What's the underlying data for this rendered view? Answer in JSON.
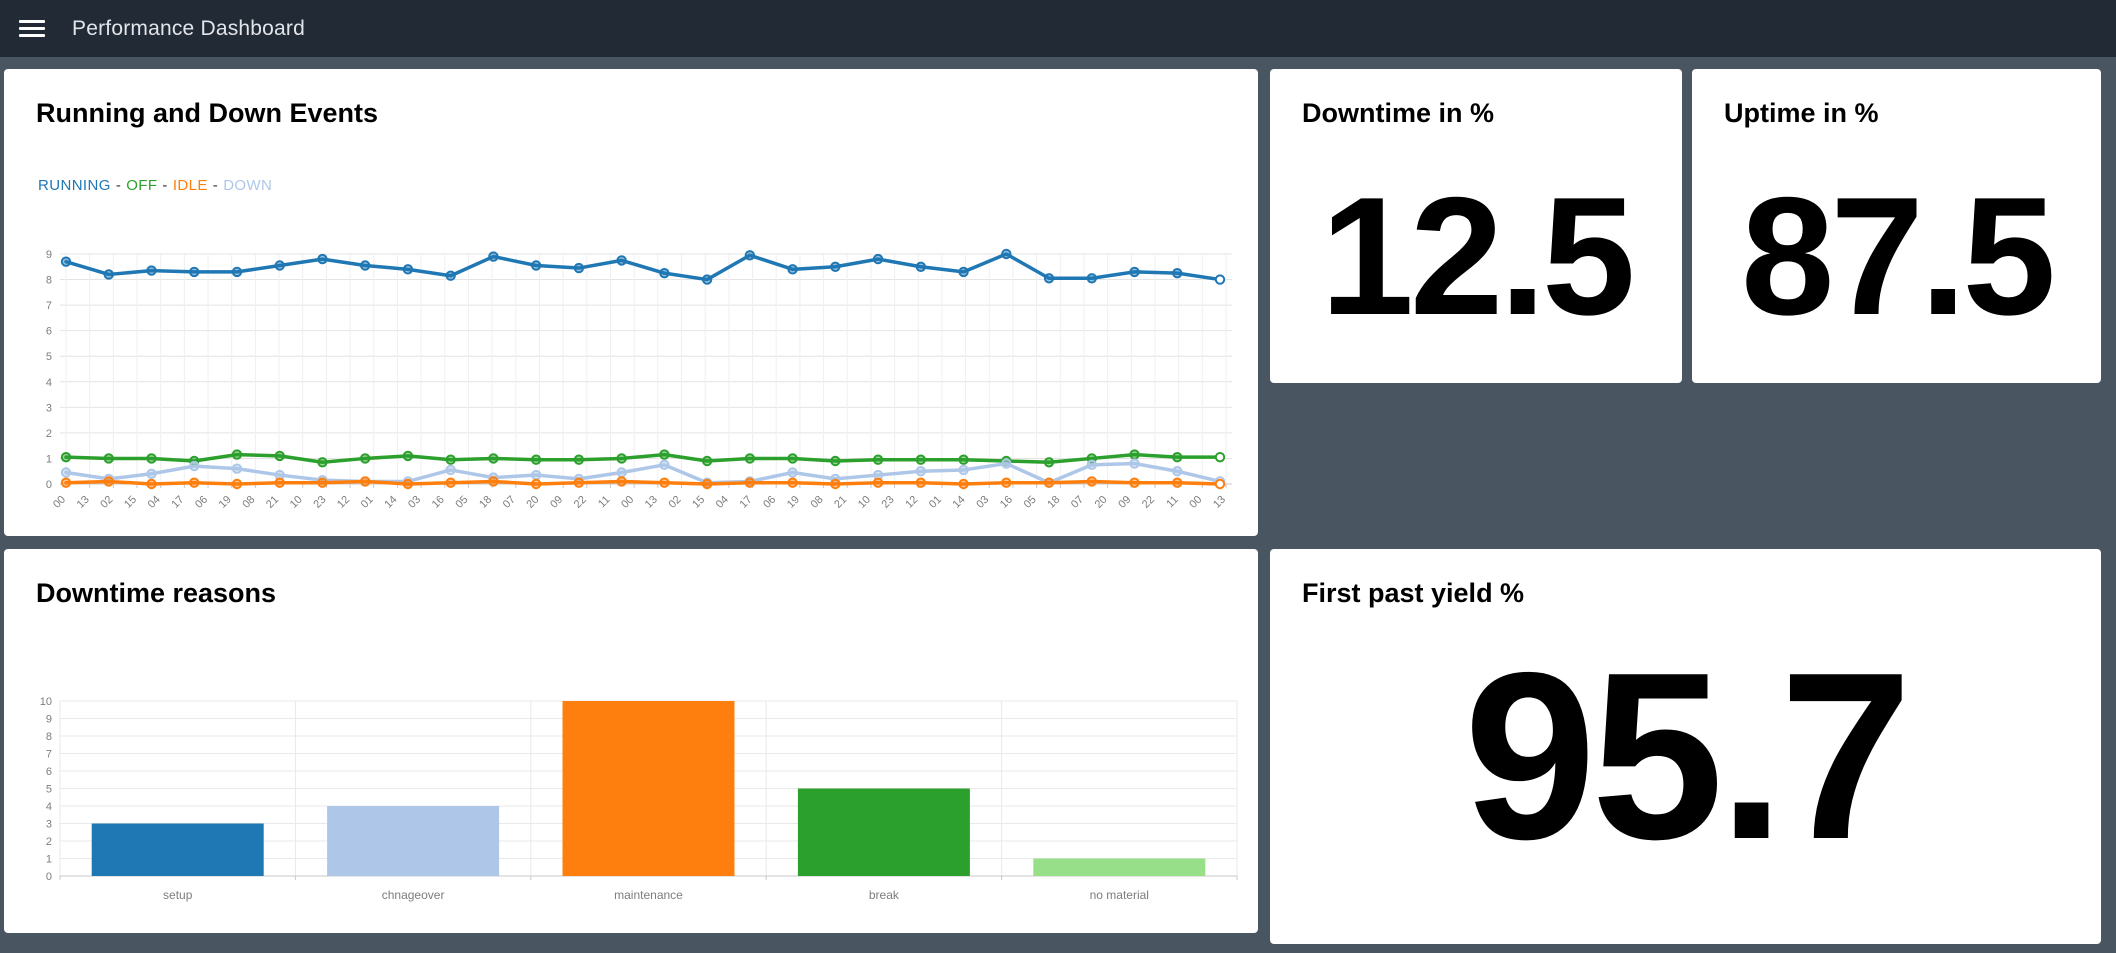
{
  "navbar": {
    "title": "Performance Dashboard"
  },
  "colors": {
    "navbar_bg": "#222a36",
    "page_bg": "#4a5562",
    "card_bg": "#ffffff",
    "running": "#1f77b4",
    "off": "#2ca02c",
    "idle": "#ff7f0e",
    "down": "#aec7e8",
    "no_material": "#98df8a",
    "grid_line": "#e4e4e4",
    "axis_text": "#7d7d7d"
  },
  "cards": {
    "events": {
      "title": "Running and Down Events",
      "legend": [
        {
          "label": "RUNNING",
          "color": "#1f77b4"
        },
        {
          "label": "OFF",
          "color": "#2ca02c"
        },
        {
          "label": "IDLE",
          "color": "#ff7f0e"
        },
        {
          "label": "DOWN",
          "color": "#aec7e8"
        }
      ],
      "legend_separator": "-"
    },
    "downtime": {
      "title": "Downtime in %",
      "value": "12.5"
    },
    "uptime": {
      "title": "Uptime in %",
      "value": "87.5"
    },
    "reasons": {
      "title": "Downtime reasons"
    },
    "yield": {
      "title": "First past yield %",
      "value": "95.7"
    }
  },
  "chart_data": [
    {
      "type": "line",
      "title": "Running and Down Events",
      "xlabel": "",
      "ylabel": "",
      "ylim": [
        0,
        9
      ],
      "y_ticks": [
        0,
        1,
        2,
        3,
        4,
        5,
        6,
        7,
        8,
        9
      ],
      "grid": true,
      "legend_position": "top-left",
      "x_tick_labels": [
        "00",
        "13",
        "02",
        "15",
        "04",
        "17",
        "06",
        "19",
        "08",
        "21",
        "10",
        "23",
        "12",
        "01",
        "14",
        "03",
        "16",
        "05",
        "18",
        "07",
        "20",
        "09",
        "22",
        "11",
        "00",
        "13",
        "02",
        "15",
        "04",
        "17",
        "06",
        "19",
        "08",
        "21",
        "10",
        "23",
        "12",
        "01",
        "14",
        "03",
        "16",
        "05",
        "18",
        "07",
        "20",
        "09",
        "22",
        "11",
        "00",
        "13"
      ],
      "series": [
        {
          "name": "RUNNING",
          "color": "#1f77b4",
          "values": [
            8.7,
            8.2,
            8.35,
            8.3,
            8.3,
            8.55,
            8.8,
            8.55,
            8.4,
            8.15,
            8.9,
            8.55,
            8.45,
            8.75,
            8.25,
            8.0,
            8.95,
            8.4,
            8.5,
            8.8,
            8.5,
            8.3,
            9.0,
            8.05,
            8.05,
            8.3,
            8.25,
            8.0
          ]
        },
        {
          "name": "OFF",
          "color": "#2ca02c",
          "values": [
            1.05,
            1.0,
            1.0,
            0.9,
            1.15,
            1.1,
            0.85,
            1.0,
            1.1,
            0.95,
            1.0,
            0.95,
            0.95,
            1.0,
            1.15,
            0.9,
            1.0,
            1.0,
            0.9,
            0.95,
            0.95,
            0.95,
            0.9,
            0.85,
            1.0,
            1.15,
            1.05,
            1.05
          ]
        },
        {
          "name": "DOWN",
          "color": "#aec7e8",
          "values": [
            0.45,
            0.2,
            0.4,
            0.7,
            0.6,
            0.35,
            0.15,
            0.1,
            0.1,
            0.55,
            0.25,
            0.35,
            0.2,
            0.45,
            0.75,
            0.05,
            0.1,
            0.45,
            0.2,
            0.35,
            0.5,
            0.55,
            0.8,
            0.05,
            0.75,
            0.8,
            0.5,
            0.1
          ]
        },
        {
          "name": "IDLE",
          "color": "#ff7f0e",
          "values": [
            0.05,
            0.1,
            0.0,
            0.05,
            0.0,
            0.05,
            0.05,
            0.1,
            0.0,
            0.05,
            0.1,
            0.0,
            0.05,
            0.1,
            0.05,
            0.0,
            0.05,
            0.05,
            0.0,
            0.05,
            0.05,
            0.0,
            0.05,
            0.05,
            0.1,
            0.05,
            0.05,
            0.0
          ]
        }
      ]
    },
    {
      "type": "bar",
      "title": "Downtime reasons",
      "categories": [
        "setup",
        "chnageover",
        "maintenance",
        "break",
        "no material"
      ],
      "values": [
        3,
        4,
        10,
        5,
        1
      ],
      "bar_colors": [
        "#1f77b4",
        "#aec7e8",
        "#ff7f0e",
        "#2ca02c",
        "#98df8a"
      ],
      "xlabel": "",
      "ylabel": "",
      "ylim": [
        0,
        10
      ],
      "y_ticks": [
        0,
        1,
        2,
        3,
        4,
        5,
        6,
        7,
        8,
        9,
        10
      ],
      "grid": true
    }
  ]
}
